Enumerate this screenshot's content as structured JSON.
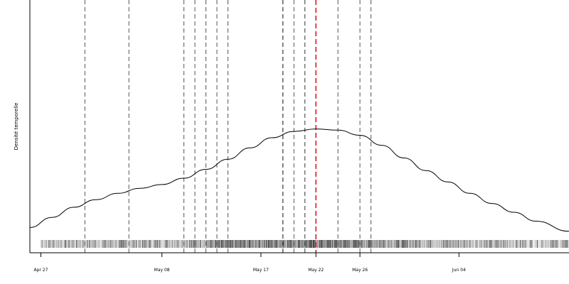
{
  "chart_data": {
    "type": "line",
    "ylabel": "Densité temporelle",
    "xlabel": "",
    "x_axis": {
      "type": "date",
      "range": [
        "2024-04-26",
        "2024-06-14"
      ],
      "ticks": [
        {
          "date": "2024-04-27",
          "label": "Apr 27"
        },
        {
          "date": "2024-05-08",
          "label": "May 08"
        },
        {
          "date": "2024-05-17",
          "label": "May 17"
        },
        {
          "date": "2024-05-22",
          "label": "May 22"
        },
        {
          "date": "2024-05-26",
          "label": "May 26"
        },
        {
          "date": "2024-06-04",
          "label": "Jun 04"
        }
      ]
    },
    "y_axis": {
      "ylim": [
        0,
        1
      ],
      "tick_labels": false
    },
    "density_curve": {
      "color": "#000000",
      "points": [
        {
          "x": "2024-04-26",
          "y": 0.1
        },
        {
          "x": "2024-04-28",
          "y": 0.14
        },
        {
          "x": "2024-04-30",
          "y": 0.18
        },
        {
          "x": "2024-05-02",
          "y": 0.21
        },
        {
          "x": "2024-05-04",
          "y": 0.235
        },
        {
          "x": "2024-05-06",
          "y": 0.255
        },
        {
          "x": "2024-05-08",
          "y": 0.27
        },
        {
          "x": "2024-05-10",
          "y": 0.295
        },
        {
          "x": "2024-05-12",
          "y": 0.33
        },
        {
          "x": "2024-05-14",
          "y": 0.37
        },
        {
          "x": "2024-05-16",
          "y": 0.415
        },
        {
          "x": "2024-05-18",
          "y": 0.455
        },
        {
          "x": "2024-05-20",
          "y": 0.48
        },
        {
          "x": "2024-05-22",
          "y": 0.49
        },
        {
          "x": "2024-05-24",
          "y": 0.485
        },
        {
          "x": "2024-05-26",
          "y": 0.465
        },
        {
          "x": "2024-05-28",
          "y": 0.425
        },
        {
          "x": "2024-05-30",
          "y": 0.375
        },
        {
          "x": "2024-06-01",
          "y": 0.325
        },
        {
          "x": "2024-06-03",
          "y": 0.28
        },
        {
          "x": "2024-06-05",
          "y": 0.235
        },
        {
          "x": "2024-06-07",
          "y": 0.195
        },
        {
          "x": "2024-06-09",
          "y": 0.16
        },
        {
          "x": "2024-06-11",
          "y": 0.125
        },
        {
          "x": "2024-06-14",
          "y": 0.085
        }
      ]
    },
    "reference_lines": [
      {
        "x": "2024-05-01",
        "color": "#555555",
        "style": "dashed"
      },
      {
        "x": "2024-05-05",
        "color": "#555555",
        "style": "dashed"
      },
      {
        "x": "2024-05-10",
        "color": "#555555",
        "style": "dashed"
      },
      {
        "x": "2024-05-11",
        "color": "#555555",
        "style": "dashed"
      },
      {
        "x": "2024-05-12",
        "color": "#555555",
        "style": "dashed"
      },
      {
        "x": "2024-05-13",
        "color": "#555555",
        "style": "dashed"
      },
      {
        "x": "2024-05-14",
        "color": "#555555",
        "style": "dashed"
      },
      {
        "x": "2024-05-19",
        "color": "#111111",
        "style": "dashed"
      },
      {
        "x": "2024-05-20",
        "color": "#555555",
        "style": "dashed"
      },
      {
        "x": "2024-05-21",
        "color": "#333333",
        "style": "dashed"
      },
      {
        "x": "2024-05-22",
        "color": "#e41a1c",
        "style": "dashed"
      },
      {
        "x": "2024-05-24",
        "color": "#555555",
        "style": "dashed"
      },
      {
        "x": "2024-05-26",
        "color": "#555555",
        "style": "dashed"
      },
      {
        "x": "2024-05-27",
        "color": "#555555",
        "style": "dashed"
      }
    ],
    "rug": {
      "range": [
        "2024-04-27",
        "2024-06-14"
      ],
      "description_color": "#000000"
    }
  }
}
